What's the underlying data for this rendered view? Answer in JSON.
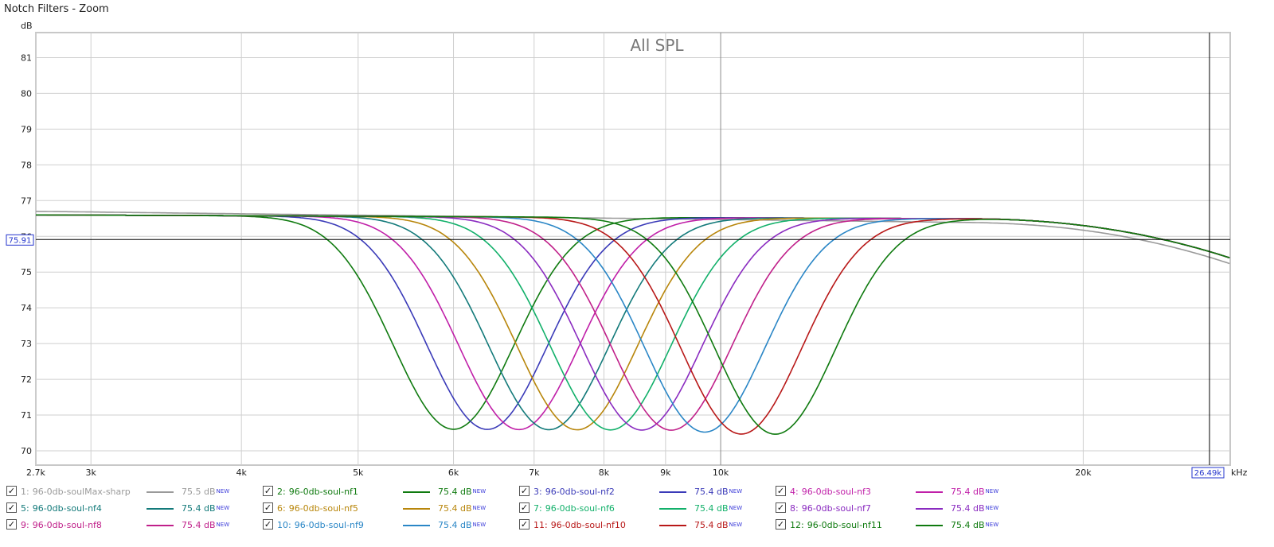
{
  "window": {
    "title": "Notch Filters - Zoom"
  },
  "chart_data": {
    "type": "line",
    "title": "All SPL",
    "ylabel": "dB",
    "xlabel": "kHz",
    "x_scale": "log",
    "xlim": [
      2.7,
      26.49
    ],
    "ylim": [
      69.6,
      81.7
    ],
    "grid": true,
    "x_ticks": [
      {
        "v": 2.7,
        "label": "2.7k"
      },
      {
        "v": 3,
        "label": "3k"
      },
      {
        "v": 4,
        "label": "4k"
      },
      {
        "v": 5,
        "label": "5k"
      },
      {
        "v": 6,
        "label": "6k"
      },
      {
        "v": 7,
        "label": "7k"
      },
      {
        "v": 8,
        "label": "8k"
      },
      {
        "v": 9,
        "label": "9k"
      },
      {
        "v": 10,
        "label": "10k"
      },
      {
        "v": 20,
        "label": "20k"
      }
    ],
    "y_ticks": [
      70,
      71,
      72,
      73,
      74,
      75,
      76,
      77,
      78,
      79,
      80,
      81
    ],
    "cursor": {
      "x": 26.49,
      "y": 75.91,
      "x_label": "26.49k",
      "y_label": "75.91"
    },
    "series": [
      {
        "name": "96-0db-soulMax-sharp",
        "color": "#9a9a9a",
        "baseline": 76.7,
        "notch_freq": null,
        "notch_level": null
      },
      {
        "name": "96-0db-soul-nf1",
        "color": "#0f7a0f",
        "baseline": 76.6,
        "notch_freq": 6.0,
        "notch_level": 70.65
      },
      {
        "name": "96-0db-soul-nf2",
        "color": "#3a3ab8",
        "baseline": 76.6,
        "notch_freq": 6.4,
        "notch_level": 70.65
      },
      {
        "name": "96-0db-soul-nf3",
        "color": "#c01fa8",
        "baseline": 76.6,
        "notch_freq": 6.8,
        "notch_level": 70.65
      },
      {
        "name": "96-0db-soul-nf4",
        "color": "#137a7a",
        "baseline": 76.6,
        "notch_freq": 7.2,
        "notch_level": 70.65
      },
      {
        "name": "96-0db-soul-nf5",
        "color": "#b8860b",
        "baseline": 76.6,
        "notch_freq": 7.6,
        "notch_level": 70.65
      },
      {
        "name": "96-0db-soul-nf6",
        "color": "#12b06a",
        "baseline": 76.6,
        "notch_freq": 8.1,
        "notch_level": 70.65
      },
      {
        "name": "96-0db-soul-nf7",
        "color": "#8a2bc0",
        "baseline": 76.6,
        "notch_freq": 8.6,
        "notch_level": 70.65
      },
      {
        "name": "96-0db-soul-nf8",
        "color": "#c0208a",
        "baseline": 76.6,
        "notch_freq": 9.1,
        "notch_level": 70.65
      },
      {
        "name": "96-0db-soul-nf9",
        "color": "#2a86c6",
        "baseline": 76.6,
        "notch_freq": 9.7,
        "notch_level": 70.6
      },
      {
        "name": "96-0db-soul-nf10",
        "color": "#b81818",
        "baseline": 76.6,
        "notch_freq": 10.4,
        "notch_level": 70.55
      },
      {
        "name": "96-0db-soul-nf11",
        "color": "#0f7a0f",
        "baseline": 76.6,
        "notch_freq": 11.1,
        "notch_level": 70.55
      }
    ]
  },
  "legend": {
    "items": [
      {
        "index": "1:",
        "name": "96-0db-soulMax-sharp",
        "value": "75.5 dB",
        "new": "NEW",
        "checked": "✓",
        "color": "#9a9a9a"
      },
      {
        "index": "2:",
        "name": "96-0db-soul-nf1",
        "value": "75.4 dB",
        "new": "NEW",
        "checked": "✓",
        "color": "#0f7a0f"
      },
      {
        "index": "3:",
        "name": "96-0db-soul-nf2",
        "value": "75.4 dB",
        "new": "NEW",
        "checked": "✓",
        "color": "#3a3ab8"
      },
      {
        "index": "4:",
        "name": "96-0db-soul-nf3",
        "value": "75.4 dB",
        "new": "NEW",
        "checked": "✓",
        "color": "#c01fa8"
      },
      {
        "index": "5:",
        "name": "96-0db-soul-nf4",
        "value": "75.4 dB",
        "new": "NEW",
        "checked": "✓",
        "color": "#137a7a"
      },
      {
        "index": "6:",
        "name": "96-0db-soul-nf5",
        "value": "75.4 dB",
        "new": "NEW",
        "checked": "✓",
        "color": "#b8860b"
      },
      {
        "index": "7:",
        "name": "96-0db-soul-nf6",
        "value": "75.4 dB",
        "new": "NEW",
        "checked": "✓",
        "color": "#12b06a"
      },
      {
        "index": "8:",
        "name": "96-0db-soul-nf7",
        "value": "75.4 dB",
        "new": "NEW",
        "checked": "✓",
        "color": "#8a2bc0"
      },
      {
        "index": "9:",
        "name": "96-0db-soul-nf8",
        "value": "75.4 dB",
        "new": "NEW",
        "checked": "✓",
        "color": "#c0208a"
      },
      {
        "index": "10:",
        "name": "96-0db-soul-nf9",
        "value": "75.4 dB",
        "new": "NEW",
        "checked": "✓",
        "color": "#2a86c6"
      },
      {
        "index": "11:",
        "name": "96-0db-soul-nf10",
        "value": "75.4 dB",
        "new": "NEW",
        "checked": "✓",
        "color": "#b81818"
      },
      {
        "index": "12:",
        "name": "96-0db-soul-nf11",
        "value": "75.4 dB",
        "new": "NEW",
        "checked": "✓",
        "color": "#0f7a0f"
      }
    ]
  }
}
